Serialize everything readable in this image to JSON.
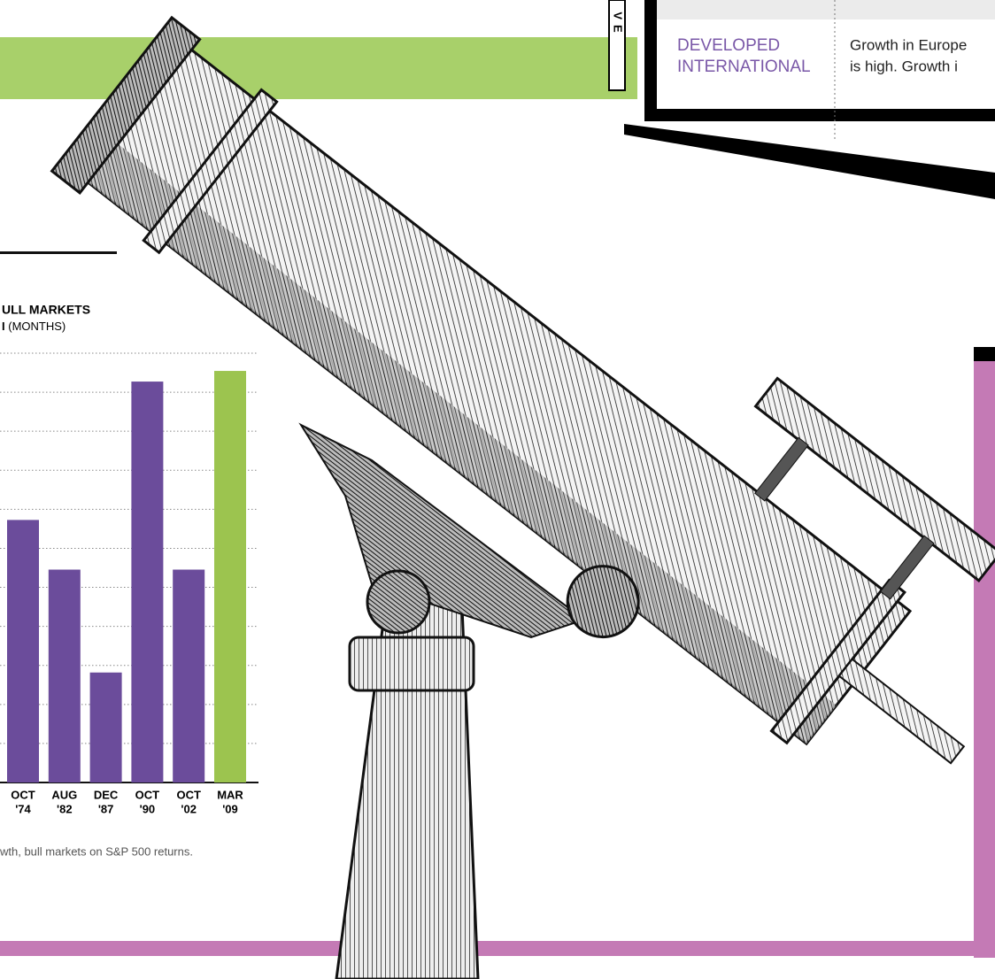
{
  "tab_label": "VE",
  "table": {
    "rows": [
      {
        "label": [
          "DEVELOPED",
          "INTERNATIONAL"
        ],
        "text": [
          "Growth in Europe",
          "is high. Growth i"
        ]
      }
    ]
  },
  "chart_data": {
    "type": "bar",
    "title": "ULL MARKETS",
    "subtitle": {
      "bold": "I",
      "text": "(MONTHS)"
    },
    "categories": [
      [
        "OCT",
        "'74"
      ],
      [
        "AUG",
        "'82"
      ],
      [
        "DEC",
        "'87"
      ],
      [
        "OCT",
        "'90"
      ],
      [
        "OCT",
        "'02"
      ],
      [
        "MAR",
        "'09"
      ]
    ],
    "values": [
      74,
      60,
      31,
      113,
      60,
      116
    ],
    "colors": [
      "#6b4c9b",
      "#6b4c9b",
      "#6b4c9b",
      "#6b4c9b",
      "#6b4c9b",
      "#9cc44f"
    ],
    "ylim": [
      0,
      121
    ],
    "yticks": [
      0,
      11,
      22,
      33,
      44,
      55,
      66,
      77,
      88,
      99,
      110,
      121
    ],
    "grid": true,
    "note": "wth, bull markets on S&P 500 returns."
  }
}
